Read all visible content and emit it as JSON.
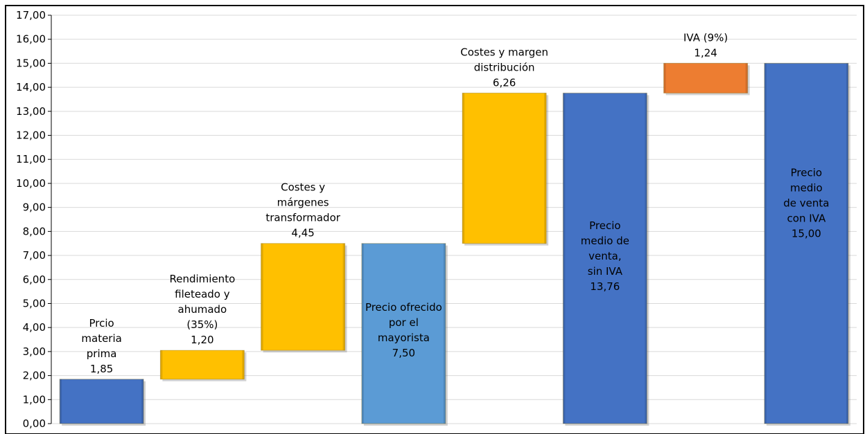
{
  "chart_data": {
    "type": "bar",
    "subtype": "waterfall",
    "y_ticks": [
      "0,00",
      "1,00",
      "2,00",
      "3,00",
      "4,00",
      "5,00",
      "6,00",
      "7,00",
      "8,00",
      "9,00",
      "10,00",
      "11,00",
      "12,00",
      "13,00",
      "14,00",
      "15,00",
      "16,00",
      "17,00"
    ],
    "ylim": [
      0,
      17
    ],
    "grid": true,
    "bars": [
      {
        "start": 0,
        "end": 1.85,
        "color": "#4472C4",
        "label_lines": [
          "Prcio",
          "materia",
          "prima",
          "1,85"
        ],
        "label_pos": "above"
      },
      {
        "start": 1.85,
        "end": 3.05,
        "color": "#FFC000",
        "label_lines": [
          "Rendimiento",
          "fileteado y",
          "ahumado",
          "(35%)",
          "1,20"
        ],
        "label_pos": "above"
      },
      {
        "start": 3.05,
        "end": 7.5,
        "color": "#FFC000",
        "label_lines": [
          "Costes y",
          "márgenes",
          "transformador",
          "4,45"
        ],
        "label_pos": "above"
      },
      {
        "start": 0,
        "end": 7.5,
        "color": "#5B9BD5",
        "label_lines": [
          "Precio ofrecido",
          "por el",
          "mayorista",
          "7,50"
        ],
        "label_pos": "inside"
      },
      {
        "start": 7.5,
        "end": 13.76,
        "color": "#FFC000",
        "label_lines": [
          "Costes y margen",
          "distribución",
          "6,26"
        ],
        "label_pos": "above"
      },
      {
        "start": 0,
        "end": 13.76,
        "color": "#4472C4",
        "label_lines": [
          "Precio",
          "medio de",
          "venta,",
          "sin IVA",
          "13,76"
        ],
        "label_pos": "inside"
      },
      {
        "start": 13.76,
        "end": 15.0,
        "color": "#ED7D31",
        "label_lines": [
          "IVA (9%)",
          "1,24"
        ],
        "label_pos": "above"
      },
      {
        "start": 0,
        "end": 15.0,
        "color": "#4472C4",
        "label_lines": [
          "Precio",
          "medio",
          "de venta",
          "con IVA",
          "15,00"
        ],
        "label_pos": "inside"
      }
    ]
  }
}
